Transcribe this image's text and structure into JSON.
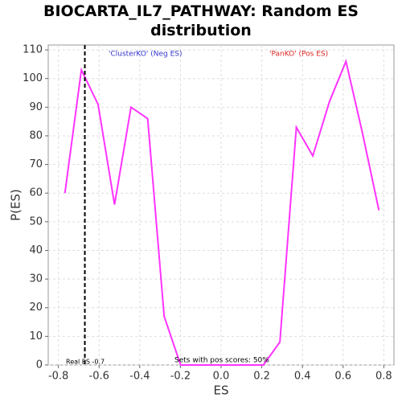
{
  "chart_data": {
    "type": "line",
    "title": "BIOCARTA_IL7_PATHWAY: Random ES distribution",
    "x_label": "ES",
    "y_label": "P(ES)",
    "x": [
      -0.768,
      -0.687,
      -0.605,
      -0.524,
      -0.443,
      -0.361,
      -0.28,
      -0.199,
      -0.118,
      -0.036,
      0.045,
      0.126,
      0.208,
      0.289,
      0.37,
      0.451,
      0.533,
      0.614,
      0.695,
      0.776
    ],
    "series": [
      {
        "color": "#ff33ff",
        "values": [
          60,
          103,
          91,
          56,
          90,
          86,
          17,
          0,
          0,
          0,
          0,
          0,
          0,
          8,
          83,
          73,
          92,
          106,
          81,
          54
        ]
      }
    ],
    "xlim": [
      -0.85,
      0.85
    ],
    "ylim": [
      0,
      111.7
    ],
    "xticks": [
      -0.8,
      -0.6,
      -0.4,
      -0.2,
      {
        "value": 0,
        "label": "0.0"
      },
      0.2,
      0.4,
      0.6,
      0.8
    ],
    "yticks": [
      0,
      10,
      20,
      30,
      40,
      50,
      60,
      70,
      80,
      90,
      100,
      110
    ],
    "grid": true,
    "real_es": {
      "value": -0.67,
      "label": "Real ES -0.7"
    },
    "annotations": [
      {
        "text": "'ClusterKO' (Neg ES)",
        "color": "#3333cc"
      },
      {
        "text": "'PanKO' (Pos ES)",
        "color": "#dd2222"
      },
      {
        "text": "Sets with pos scores: 50%"
      }
    ]
  }
}
